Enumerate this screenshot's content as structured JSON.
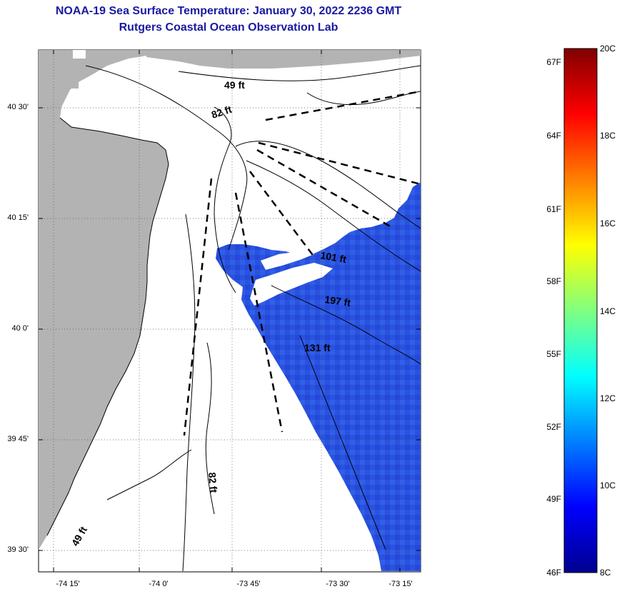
{
  "header": {
    "title": "NOAA-19 Sea Surface Temperature:  January 30, 2022 2236 GMT",
    "subtitle": "Rutgers Coastal Ocean Observation Lab"
  },
  "axes": {
    "lat_labels": [
      "40 30'",
      "40 15'",
      "40 0'",
      "39 45'",
      "39 30'"
    ],
    "lon_labels": [
      "-74 15'",
      "-74 0'",
      "-73 45'",
      "-73 30'",
      "-73 15'"
    ]
  },
  "contour_labels": {
    "c49_top": "49 ft",
    "c82_top": "82 ft",
    "c101": "101 ft",
    "c197": "197 ft",
    "c131": "131 ft",
    "c82_bottom": "82 ft",
    "c49_bottom": "49 ft"
  },
  "colorbar": {
    "fahrenheit_labels": [
      "67F",
      "64F",
      "61F",
      "58F",
      "55F",
      "52F",
      "49F",
      "46F"
    ],
    "celsius_labels": [
      "20C",
      "18C",
      "16C",
      "14C",
      "12C",
      "10C",
      "8C"
    ],
    "min_c": 8,
    "max_c": 20
  },
  "colors": {
    "title": "#1a1aa0",
    "land": "#b3b3b3",
    "sst_water": "#2a52e0",
    "sst_warm": "#3a78ef",
    "sst_cool": "#1e2fd0"
  }
}
